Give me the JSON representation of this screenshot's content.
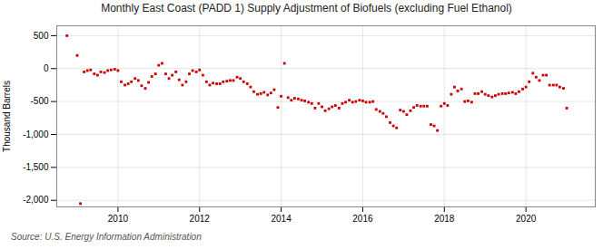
{
  "chart_data": {
    "type": "scatter",
    "title": "Monthly East Coast (PADD 1) Supply Adjustment of Biofuels (excluding Fuel Ethanol)",
    "ylabel": "Thousand Barrels",
    "source": "Source: U.S. Energy Information Administration",
    "color": "#cc0000",
    "marker": "square",
    "grid": true,
    "xlim": [
      2008.5,
      2021.7
    ],
    "xticks": [
      2010,
      2012,
      2014,
      2016,
      2018,
      2020
    ],
    "ylim": [
      -2100,
      650
    ],
    "yticks": [
      {
        "value": -2000,
        "label": "-2,000"
      },
      {
        "value": -1500,
        "label": "-1,500"
      },
      {
        "value": -1000,
        "label": "-1,000"
      },
      -500,
      0,
      500
    ],
    "x": [
      2008.75,
      2009.0,
      2009.08,
      2009.17,
      2009.25,
      2009.33,
      2009.42,
      2009.5,
      2009.58,
      2009.67,
      2009.75,
      2009.83,
      2009.92,
      2010.0,
      2010.08,
      2010.17,
      2010.25,
      2010.33,
      2010.42,
      2010.5,
      2010.58,
      2010.67,
      2010.75,
      2010.83,
      2010.92,
      2011.0,
      2011.08,
      2011.17,
      2011.25,
      2011.33,
      2011.42,
      2011.5,
      2011.58,
      2011.67,
      2011.75,
      2011.83,
      2011.92,
      2012.0,
      2012.08,
      2012.17,
      2012.25,
      2012.33,
      2012.42,
      2012.5,
      2012.58,
      2012.67,
      2012.75,
      2012.83,
      2012.92,
      2013.0,
      2013.08,
      2013.17,
      2013.25,
      2013.33,
      2013.42,
      2013.5,
      2013.58,
      2013.67,
      2013.75,
      2013.83,
      2013.92,
      2014.0,
      2014.08,
      2014.17,
      2014.25,
      2014.33,
      2014.42,
      2014.5,
      2014.58,
      2014.67,
      2014.75,
      2014.83,
      2014.92,
      2015.0,
      2015.08,
      2015.17,
      2015.25,
      2015.33,
      2015.42,
      2015.5,
      2015.58,
      2015.67,
      2015.75,
      2015.83,
      2015.92,
      2016.0,
      2016.08,
      2016.17,
      2016.25,
      2016.33,
      2016.42,
      2016.5,
      2016.58,
      2016.67,
      2016.75,
      2016.83,
      2016.92,
      2017.0,
      2017.08,
      2017.17,
      2017.25,
      2017.33,
      2017.42,
      2017.5,
      2017.58,
      2017.67,
      2017.75,
      2017.83,
      2017.92,
      2018.0,
      2018.08,
      2018.17,
      2018.25,
      2018.33,
      2018.42,
      2018.5,
      2018.58,
      2018.67,
      2018.75,
      2018.83,
      2018.92,
      2019.0,
      2019.08,
      2019.17,
      2019.25,
      2019.33,
      2019.42,
      2019.5,
      2019.58,
      2019.67,
      2019.75,
      2019.83,
      2019.92,
      2020.0,
      2020.08,
      2020.17,
      2020.25,
      2020.33,
      2020.42,
      2020.5,
      2020.58,
      2020.67,
      2020.75,
      2020.83,
      2020.92,
      2021.0
    ],
    "values": [
      500,
      200,
      -2050,
      -50,
      -30,
      -20,
      -80,
      -100,
      -50,
      -60,
      -30,
      -20,
      -10,
      -30,
      -200,
      -250,
      -230,
      -200,
      -150,
      -180,
      -260,
      -300,
      -210,
      -120,
      -80,
      50,
      80,
      -80,
      -150,
      -100,
      -50,
      -170,
      -250,
      -200,
      -80,
      -30,
      -50,
      -20,
      -100,
      -200,
      -250,
      -220,
      -230,
      -230,
      -200,
      -190,
      -180,
      -180,
      -130,
      -150,
      -200,
      -230,
      -280,
      -350,
      -390,
      -380,
      -360,
      -400,
      -370,
      -320,
      -590,
      -420,
      80,
      -440,
      -480,
      -450,
      -460,
      -480,
      -490,
      -510,
      -530,
      -600,
      -530,
      -580,
      -640,
      -610,
      -580,
      -560,
      -600,
      -530,
      -510,
      -480,
      -510,
      -500,
      -480,
      -490,
      -510,
      -510,
      -500,
      -620,
      -650,
      -680,
      -730,
      -820,
      -870,
      -900,
      -630,
      -650,
      -700,
      -640,
      -590,
      -560,
      -570,
      -570,
      -570,
      -850,
      -870,
      -940,
      -570,
      -530,
      -560,
      -390,
      -280,
      -340,
      -310,
      -500,
      -490,
      -510,
      -380,
      -380,
      -350,
      -390,
      -410,
      -430,
      -410,
      -390,
      -380,
      -380,
      -370,
      -360,
      -380,
      -350,
      -310,
      -280,
      -200,
      -70,
      -130,
      -180,
      -100,
      -100,
      -250,
      -250,
      -250,
      -280,
      -300,
      -600
    ]
  }
}
